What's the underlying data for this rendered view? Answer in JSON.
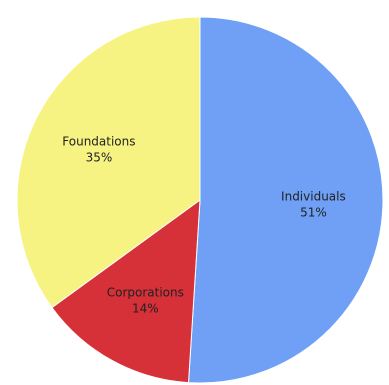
{
  "chart_data": {
    "type": "pie",
    "slices": [
      {
        "label": "Individuals",
        "value": 51,
        "value_label": "51%",
        "color": "#6fa0f5"
      },
      {
        "label": "Corporations",
        "value": 14,
        "value_label": "14%",
        "color": "#d63039"
      },
      {
        "label": "Foundations",
        "value": 35,
        "value_label": "35%",
        "color": "#f6f383"
      }
    ],
    "start_angle": "12 o'clock",
    "direction": "clockwise",
    "legend": "none"
  }
}
